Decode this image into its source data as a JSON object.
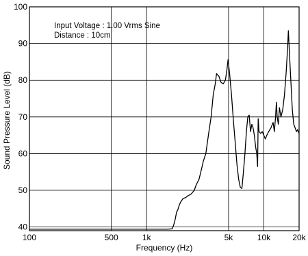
{
  "chart_data": {
    "type": "line",
    "title": "",
    "xlabel": "Frequency (Hz)",
    "ylabel": "Sound Pressure Level (dB)",
    "x_scale": "log",
    "xlim": [
      100,
      20000
    ],
    "ylim": [
      39,
      100
    ],
    "grid": true,
    "annotations": [
      "Input Voltage : 1.00 Vrms Sine",
      "Distance : 10cm"
    ],
    "x_ticks": [
      {
        "value": 100,
        "label": "100"
      },
      {
        "value": 500,
        "label": "500"
      },
      {
        "value": 1000,
        "label": "1k"
      },
      {
        "value": 5000,
        "label": "5k"
      },
      {
        "value": 10000,
        "label": "10k"
      },
      {
        "value": 20000,
        "label": "20k"
      }
    ],
    "y_ticks": [
      {
        "value": 40,
        "label": "40"
      },
      {
        "value": 50,
        "label": "50"
      },
      {
        "value": 60,
        "label": "60"
      },
      {
        "value": 70,
        "label": "70"
      },
      {
        "value": 80,
        "label": "80"
      },
      {
        "value": 90,
        "label": "90"
      },
      {
        "value": 100,
        "label": "100"
      }
    ],
    "series": [
      {
        "color": "#000000",
        "points": [
          [
            100,
            39.4
          ],
          [
            1000,
            39.4
          ],
          [
            1500,
            39.4
          ],
          [
            1650,
            39.5
          ],
          [
            1700,
            40.5
          ],
          [
            1750,
            42
          ],
          [
            1800,
            44
          ],
          [
            1850,
            44.8
          ],
          [
            1900,
            46
          ],
          [
            1950,
            46.8
          ],
          [
            2000,
            47.3
          ],
          [
            2050,
            47.8
          ],
          [
            2150,
            48
          ],
          [
            2250,
            48.5
          ],
          [
            2400,
            49
          ],
          [
            2550,
            50
          ],
          [
            2650,
            51.5
          ],
          [
            2800,
            53
          ],
          [
            2950,
            56
          ],
          [
            3050,
            58
          ],
          [
            3200,
            60
          ],
          [
            3400,
            66
          ],
          [
            3550,
            70
          ],
          [
            3700,
            76
          ],
          [
            3850,
            79
          ],
          [
            3950,
            81.8
          ],
          [
            4150,
            81
          ],
          [
            4300,
            79.5
          ],
          [
            4500,
            79
          ],
          [
            4700,
            80
          ],
          [
            4850,
            83
          ],
          [
            4950,
            85.6
          ],
          [
            5100,
            82
          ],
          [
            5300,
            76
          ],
          [
            5500,
            69
          ],
          [
            5700,
            63
          ],
          [
            5900,
            57
          ],
          [
            6100,
            53
          ],
          [
            6300,
            50.8
          ],
          [
            6500,
            50.5
          ],
          [
            6700,
            55
          ],
          [
            6900,
            60
          ],
          [
            7100,
            66
          ],
          [
            7300,
            70
          ],
          [
            7500,
            70.5
          ],
          [
            7700,
            66
          ],
          [
            7900,
            68
          ],
          [
            8100,
            67
          ],
          [
            8300,
            65
          ],
          [
            8500,
            62
          ],
          [
            8700,
            60
          ],
          [
            8850,
            56.5
          ],
          [
            8950,
            69.5
          ],
          [
            9100,
            66
          ],
          [
            9400,
            65.5
          ],
          [
            9700,
            66
          ],
          [
            10000,
            65
          ],
          [
            10300,
            64
          ],
          [
            10600,
            65
          ],
          [
            11000,
            66
          ],
          [
            11500,
            67
          ],
          [
            12000,
            68.5
          ],
          [
            12300,
            66
          ],
          [
            12600,
            70
          ],
          [
            12800,
            74
          ],
          [
            13000,
            70
          ],
          [
            13300,
            68
          ],
          [
            13600,
            72.5
          ],
          [
            14000,
            70
          ],
          [
            14500,
            72
          ],
          [
            15000,
            76
          ],
          [
            15500,
            82
          ],
          [
            15900,
            88
          ],
          [
            16200,
            93.5
          ],
          [
            16500,
            88
          ],
          [
            17000,
            80
          ],
          [
            17500,
            72
          ],
          [
            18000,
            68
          ],
          [
            18500,
            67
          ],
          [
            19000,
            66
          ],
          [
            19400,
            66.5
          ],
          [
            20000,
            65.5
          ]
        ]
      }
    ]
  }
}
